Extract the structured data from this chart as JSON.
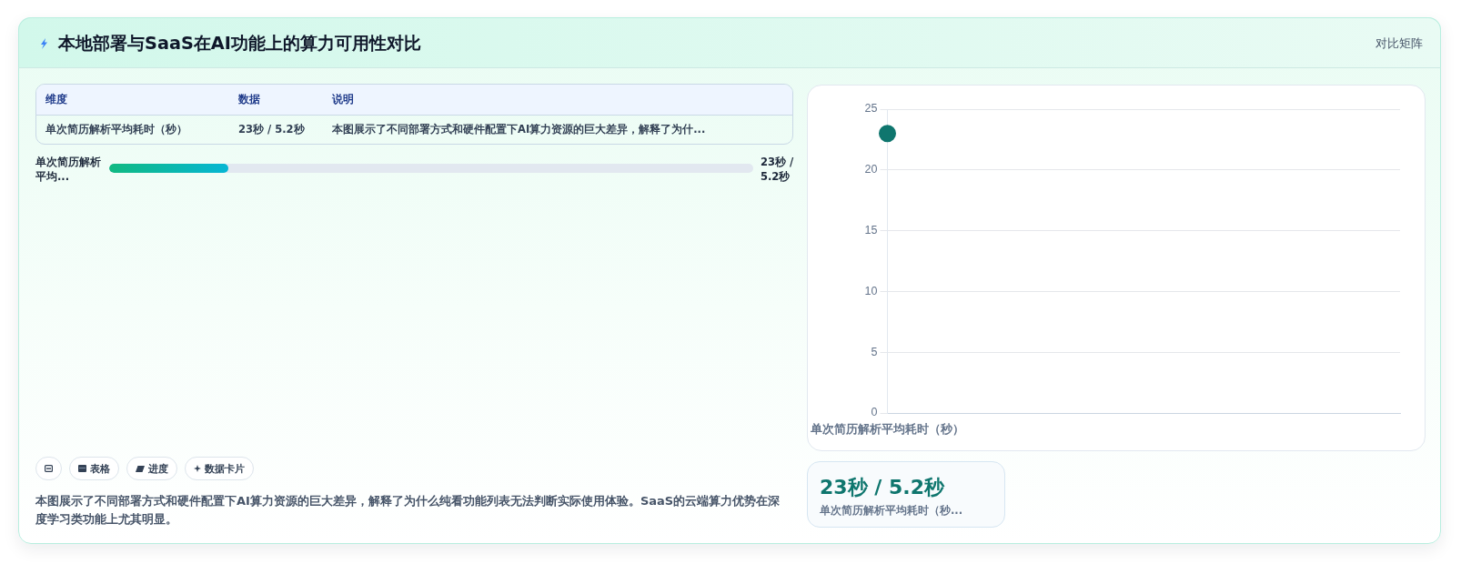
{
  "chart_data": [
    {
      "type": "other",
      "title": "本地部署与SaaS在AI功能上的算力可用性对比",
      "annotations": [
        "对比矩阵"
      ]
    },
    {
      "type": "other",
      "annotations": [
        "维度",
        "数据",
        "说明",
        "单次简历解析平均耗时（秒）",
        "23秒 / 5.2秒",
        "本图展示了不同部署方式和硬件配置下AI算力资源的巨大差异，解释了为什...",
        "单次简历解析平均...",
        "23秒 / 5.2秒",
        "表格",
        "进度",
        "数据卡片",
        "本图展示了不同部署方式和硬件配置下AI算力资源的巨大差异，解释了为什么纯看功能列表无法判断实际使用体验。SaaS的云端算力优势在深度学习类功能上尤其明显。"
      ]
    },
    {
      "type": "line",
      "categories": [
        "单次简历解析平均耗时（秒）"
      ],
      "series": [
        {
          "color": "#0f766e",
          "values": [
            23
          ]
        }
      ],
      "ylim": [
        0,
        25
      ],
      "yticks": [
        0,
        5,
        10,
        15,
        20,
        25
      ],
      "grid": "y",
      "marker": "circle"
    },
    {
      "type": "other",
      "annotations": [
        "23秒 / 5.2秒",
        "单次简历解析平均耗时（秒..."
      ]
    }
  ]
}
